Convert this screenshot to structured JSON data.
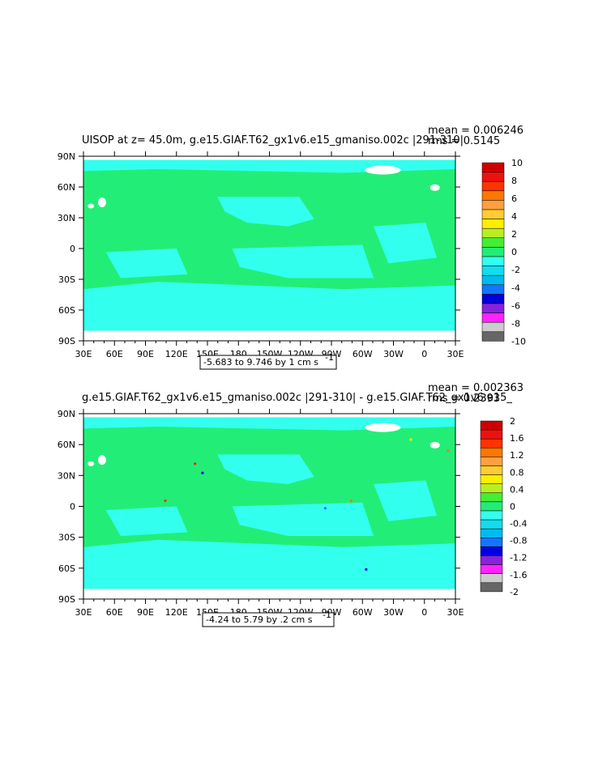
{
  "chart_data": [
    {
      "type": "heatmap",
      "title": "UISOP at z=   45.0m, g.e15.GIAF.T62_gx1v6.e15_gmaniso.002c  |291-310|",
      "stats": {
        "mean": "mean = 0.006246",
        "rms": "rms = 0.5145"
      },
      "range_text": "-5.683 to 9.746 by 1 cm s",
      "range_exp": "-1",
      "x_ticks": [
        "30E",
        "60E",
        "90E",
        "120E",
        "150E",
        "180",
        "150W",
        "120W",
        "90W",
        "60W",
        "30W",
        "0",
        "30E"
      ],
      "y_ticks": [
        "90N",
        "60N",
        "30N",
        "0",
        "30S",
        "60S",
        "90S"
      ],
      "colorbar": {
        "labels": [
          "10",
          "8",
          "6",
          "4",
          "2",
          "0",
          "-2",
          "-4",
          "-6",
          "-8",
          "-10"
        ],
        "colors": [
          "#cc0000",
          "#ee1111",
          "#ff3300",
          "#ff7700",
          "#ffa040",
          "#ffcc33",
          "#ffee00",
          "#bbee22",
          "#44ee33",
          "#22ee77",
          "#33ffee",
          "#11ddee",
          "#00bbee",
          "#1177ff",
          "#0000dd",
          "#8822dd",
          "#ff22ff",
          "#cccccc",
          "#666666"
        ]
      },
      "dominant_values": {
        "ocean_high": "0",
        "ocean_low": "-2"
      }
    },
    {
      "type": "heatmap",
      "title": "g.e15.GIAF.T62_gx1v6.e15_gmaniso.002c  |291-310|  -  g.e15.GIAF.T62_gx1v6.e15_",
      "stats": {
        "mean": "mean = 0.002363",
        "rms": "rms = 0.2393"
      },
      "range_text": "-4.24 to 5.79 by .2 cm s",
      "range_exp": "-1",
      "x_ticks": [
        "30E",
        "60E",
        "90E",
        "120E",
        "150E",
        "180",
        "150W",
        "120W",
        "90W",
        "60W",
        "30W",
        "0",
        "30E"
      ],
      "y_ticks": [
        "90N",
        "60N",
        "30N",
        "0",
        "30S",
        "60S",
        "90S"
      ],
      "colorbar": {
        "labels": [
          "2",
          "1.6",
          "1.2",
          "0.8",
          "0.4",
          "0",
          "-0.4",
          "-0.8",
          "-1.2",
          "-1.6",
          "-2"
        ],
        "colors": [
          "#cc0000",
          "#ee1111",
          "#ff3300",
          "#ff7700",
          "#ffa040",
          "#ffcc33",
          "#ffee00",
          "#bbee22",
          "#44ee33",
          "#22ee77",
          "#33ffee",
          "#11ddee",
          "#00bbee",
          "#1177ff",
          "#0000dd",
          "#8822dd",
          "#ff22ff",
          "#cccccc",
          "#666666"
        ]
      },
      "dominant_values": {
        "ocean_high": "0",
        "ocean_low": "-0.4"
      }
    }
  ],
  "colors": {
    "green": "#22ee77",
    "cyan": "#33ffee",
    "land": "#ffffff"
  }
}
